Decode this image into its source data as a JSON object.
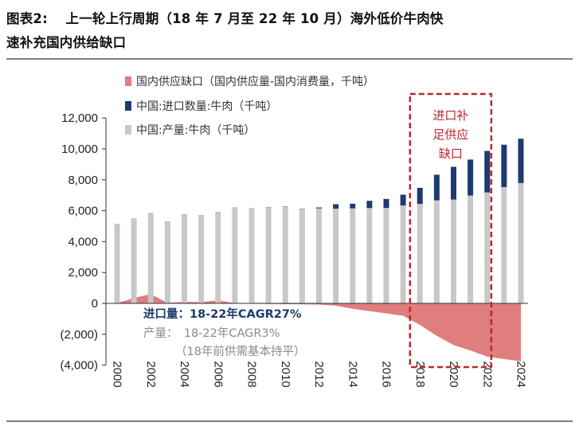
{
  "title": {
    "line1": "图表2:　 上一轮上行周期（18 年 7 月至 22 年 10 月）海外低价牛肉快",
    "line2": "速补充国内供给缺口"
  },
  "chart_data": {
    "type": "bar",
    "x": [
      2000,
      2001,
      2002,
      2003,
      2004,
      2005,
      2006,
      2007,
      2008,
      2009,
      2010,
      2011,
      2012,
      2013,
      2014,
      2015,
      2016,
      2017,
      2018,
      2019,
      2020,
      2021,
      2022,
      2023,
      2024
    ],
    "xticks": [
      "2000",
      "2002",
      "2004",
      "2006",
      "2008",
      "2010",
      "2012",
      "2014",
      "2016",
      "2018",
      "2020",
      "2022",
      "2024"
    ],
    "ylim": [
      -4000,
      12000
    ],
    "yticks": [
      12000,
      10000,
      8000,
      6000,
      4000,
      2000,
      0,
      -2000,
      -4000
    ],
    "ytick_labels": [
      "12,000",
      "10,000",
      "8,000",
      "6,000",
      "4,000",
      "2,000",
      "0",
      "(2,000)",
      "(4,000)"
    ],
    "series": [
      {
        "name": "中国:产量:牛肉（千吨）",
        "type": "bar",
        "color": "#c8c8c8",
        "values": [
          5130,
          5480,
          5840,
          5300,
          5750,
          5700,
          5900,
          6200,
          6150,
          6200,
          6250,
          6100,
          6150,
          6130,
          6150,
          6170,
          6180,
          6340,
          6440,
          6670,
          6720,
          6980,
          7180,
          7530,
          7790
        ]
      },
      {
        "name": "中国:进口数量:牛肉（千吨）",
        "type": "bar",
        "color": "#1f3a6e",
        "values": [
          10,
          10,
          10,
          10,
          10,
          10,
          10,
          10,
          10,
          20,
          20,
          20,
          60,
          290,
          300,
          470,
          580,
          700,
          1040,
          1660,
          2120,
          2330,
          2690,
          2740,
          2870
        ]
      },
      {
        "name": "国内供应缺口（国内供应量-国内消费量，千吨）",
        "type": "area",
        "color": "#e07d7d",
        "values": [
          20,
          350,
          600,
          30,
          100,
          80,
          200,
          10,
          -30,
          -40,
          -50,
          -60,
          -80,
          -150,
          -350,
          -500,
          -650,
          -800,
          -1400,
          -2100,
          -2700,
          -3050,
          -3450,
          -3600,
          -3750
        ]
      }
    ],
    "highlight": {
      "x_from": 2017.6,
      "x_to": 2022.1,
      "label": "进口补足供应缺口",
      "color": "#c0262d"
    },
    "annotations": {
      "import_cagr": "进口量：18-22年CAGR27%",
      "output_cagr": "产量：　18-22年CAGR3%",
      "note": "（18年前供需基本持平）"
    }
  }
}
